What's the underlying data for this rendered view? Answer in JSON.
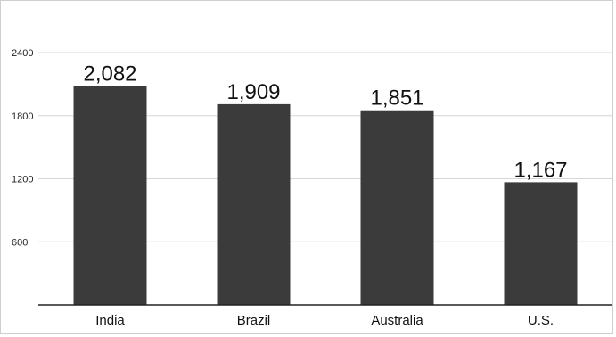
{
  "chart_data": {
    "type": "bar",
    "categories": [
      "India",
      "Brazil",
      "Australia",
      "U.S."
    ],
    "values": [
      2082,
      1909,
      1851,
      1167
    ],
    "data_labels": [
      "2,082",
      "1,909",
      "1,851",
      "1,167"
    ],
    "yticks": [
      600,
      1200,
      1800,
      2400
    ],
    "ylim": [
      0,
      2400
    ],
    "grid": true,
    "bar_color": "#3b3b3b",
    "grid_color": "#d6d6d6",
    "axis_color": "#222222"
  }
}
